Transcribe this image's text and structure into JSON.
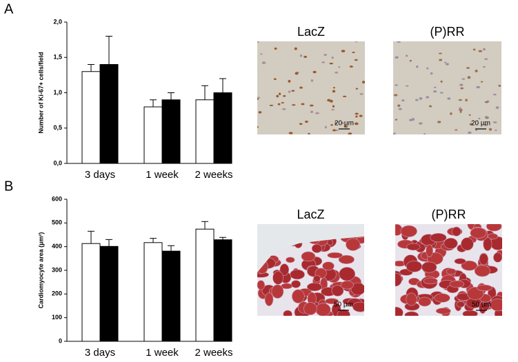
{
  "chart_data": [
    {
      "type": "bar",
      "y_label": "Number of Ki-67+ cells/field",
      "categories": [
        "3 days",
        "1 week",
        "2 weeks"
      ],
      "series": [
        {
          "color": "#ffffff",
          "values": [
            1.3,
            0.8,
            0.9
          ],
          "errors": [
            0.1,
            0.1,
            0.2
          ]
        },
        {
          "color": "#000000",
          "values": [
            1.4,
            0.9,
            1.0
          ],
          "errors": [
            0.4,
            0.1,
            0.2
          ]
        }
      ],
      "ylim": [
        0,
        2.0
      ],
      "yticks": [
        {
          "value": 0,
          "label": "0,0"
        },
        {
          "value": 0.5,
          "label": "0,5"
        },
        {
          "value": 1.0,
          "label": "1,0"
        },
        {
          "value": 1.5,
          "label": "1,5"
        },
        {
          "value": 2.0,
          "label": "2,0"
        }
      ]
    },
    {
      "type": "bar",
      "y_label": "Cardiomyocyte area (µm²)",
      "categories": [
        "3 days",
        "1 week",
        "2 weeks"
      ],
      "series": [
        {
          "color": "#ffffff",
          "values": [
            413,
            417,
            474
          ],
          "errors": [
            52,
            18,
            32
          ]
        },
        {
          "color": "#000000",
          "values": [
            401,
            381,
            429
          ],
          "errors": [
            29,
            23,
            10
          ]
        }
      ],
      "ylim": [
        0,
        600
      ],
      "yticks": [
        0,
        100,
        200,
        300,
        400,
        500,
        600
      ]
    }
  ],
  "panels": [
    {
      "label": "A",
      "images": [
        {
          "title": "LacZ",
          "scale": "20 µm"
        },
        {
          "title": "(P)RR",
          "scale": "20 µm"
        }
      ]
    },
    {
      "label": "B",
      "images": [
        {
          "title": "LacZ",
          "scale": "50 µm"
        },
        {
          "title": "(P)RR",
          "scale": "50 µm"
        }
      ]
    }
  ]
}
